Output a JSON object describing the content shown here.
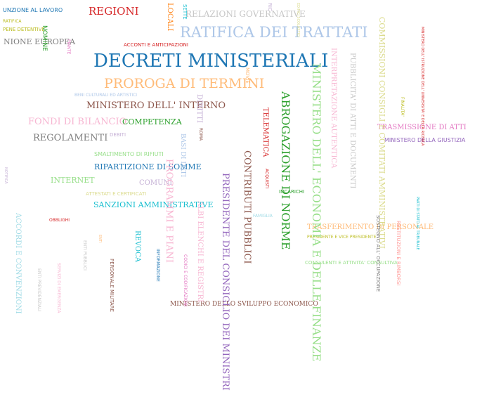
{
  "words": [
    {
      "id": "w01",
      "text": "UNZIONE AL LAVORO",
      "color": "#1f77b4"
    },
    {
      "id": "w02",
      "text": "REGIONI",
      "color": "#d62728"
    },
    {
      "id": "w03",
      "text": "LOCALI",
      "color": "#ff7f0e"
    },
    {
      "id": "w04",
      "text": "RELAZIONI GOVERNATIVE",
      "color": "#c7c7c7"
    },
    {
      "id": "w05",
      "text": "RATIFICA",
      "color": "#bcbd22"
    },
    {
      "id": "w06",
      "text": "PENE DETENTIVE",
      "color": "#bcbd22"
    },
    {
      "id": "w07",
      "text": "NOMINE",
      "color": "#2ca02c"
    },
    {
      "id": "w08",
      "text": "RATIFICA DEI TRATTATI",
      "color": "#aec7e8"
    },
    {
      "id": "w09",
      "text": "NIONE EUROPEA",
      "color": "#7f7f7f"
    },
    {
      "id": "w10",
      "text": "ACCONTI E ANTICIPAZIONI",
      "color": "#d62728"
    },
    {
      "id": "w11",
      "text": "DECRETI MINISTERIALI",
      "color": "#1f77b4"
    },
    {
      "id": "w12",
      "text": "PROROGA DI TERMINI",
      "color": "#ffbb78"
    },
    {
      "id": "w13",
      "text": "BENI CULTURALI ED ARTISTICI",
      "color": "#aec7e8"
    },
    {
      "id": "w14",
      "text": "MINISTERO DELL' INTERNO",
      "color": "#8c564b"
    },
    {
      "id": "w15",
      "text": "FONDI DI BILANCIO",
      "color": "#f7b6d2"
    },
    {
      "id": "w16",
      "text": "COMPETENZA",
      "color": "#2ca02c"
    },
    {
      "id": "w17",
      "text": "DEBITI",
      "color": "#c5b0d5"
    },
    {
      "id": "w18",
      "text": "REGOLAMENTI",
      "color": "#7f7f7f"
    },
    {
      "id": "w19",
      "text": "SMALTIMENTO DI RIFIUTI",
      "color": "#98df8a"
    },
    {
      "id": "w20",
      "text": "RIPARTIZIONE DI SOMME",
      "color": "#1f77b4"
    },
    {
      "id": "w21",
      "text": "INTERNET",
      "color": "#98df8a"
    },
    {
      "id": "w22",
      "text": "COMUNI",
      "color": "#c5b0d5"
    },
    {
      "id": "w23",
      "text": "ATTESTATI E CERTIFICATI",
      "color": "#dbdb8d"
    },
    {
      "id": "w24",
      "text": "SANZIONI AMMINISTRATIVE",
      "color": "#17becf"
    },
    {
      "id": "w25",
      "text": "OBBLIGHI",
      "color": "#d62728"
    },
    {
      "id": "w26",
      "text": "DIRITTI",
      "color": "#c5b0d5"
    },
    {
      "id": "w27",
      "text": "ROMA",
      "color": "#8c564b"
    },
    {
      "id": "w28",
      "text": "BASI DI DATI",
      "color": "#aec7e8"
    },
    {
      "id": "w29",
      "text": "PROGRAMMI E PIANI",
      "color": "#f7b6d2"
    },
    {
      "id": "w30",
      "text": "ALBI ELENCHI E REGISTRI",
      "color": "#f7b6d2"
    },
    {
      "id": "w31",
      "text": "CODICI E CODIFICAZIONI",
      "color": "#e377c2"
    },
    {
      "id": "w32",
      "text": "PRESIDENTE DEL CONSIGLIO DEI MINISTRI",
      "color": "#9467bd"
    },
    {
      "id": "w33",
      "text": "CONTRIBUTI PUBBLICI",
      "color": "#8c564b"
    },
    {
      "id": "w34",
      "text": "TELEMATICA",
      "color": "#d62728"
    },
    {
      "id": "w35",
      "text": "ACQUISTI",
      "color": "#d62728"
    },
    {
      "id": "w36",
      "text": "ABROGAZIONE DI NORME",
      "color": "#2ca02c"
    },
    {
      "id": "w37",
      "text": "INCARICHI",
      "color": "#2ca02c"
    },
    {
      "id": "w38",
      "text": "FAMIGLIA",
      "color": "#9edae5"
    },
    {
      "id": "w39",
      "text": "MINISTERO DELL' ECONOMIA E DELLE FINANZE",
      "color": "#98df8a"
    },
    {
      "id": "w40",
      "text": "INTERPRETAZIONE AUTENTICA",
      "color": "#f7b6d2"
    },
    {
      "id": "w41",
      "text": "PUBBLICITA' DI ATTI E DOCUMENTI",
      "color": "#c7c7c7"
    },
    {
      "id": "w42",
      "text": "COMMISSIONI CONSIGLI E COMITATI AMMINISTRATIVI",
      "color": "#dbdb8d"
    },
    {
      "id": "w43",
      "text": "MINISTERO DELL' ISTRUZIONE DELL' UNIVERSITA' E DELLA RICERCA",
      "color": "#d62728"
    },
    {
      "id": "w44",
      "text": "TRASMISSIONE DI ATTI",
      "color": "#e377c2"
    },
    {
      "id": "w45",
      "text": "MINISTERO DELLA GIUSTIZIA",
      "color": "#9467bd"
    },
    {
      "id": "w46",
      "text": "TRASFERIMENTO DI PERSONALE",
      "color": "#ffbb78"
    },
    {
      "id": "w47",
      "text": "PRESIDENTE E VICE PRESIDENTE",
      "color": "#bcbd22"
    },
    {
      "id": "w48",
      "text": "CONSULENTI E ATTIVITA' CONSULTIVA",
      "color": "#98df8a"
    },
    {
      "id": "w49",
      "text": "RESTITUZIONI E RIMBORSI",
      "color": "#ff9896"
    },
    {
      "id": "w50",
      "text": "SOSTEGNO ALL' OCCUPAZIONE",
      "color": "#7f7f7f"
    },
    {
      "id": "w51",
      "text": "PARTI DI STATO AL TRIBUNALE",
      "color": "#17becf"
    },
    {
      "id": "w52",
      "text": "REVOCA",
      "color": "#17becf"
    },
    {
      "id": "w53",
      "text": "INFORMAZIONE",
      "color": "#1f77b4"
    },
    {
      "id": "w54",
      "text": "ENTI PUBBLICI",
      "color": "#c7c7c7"
    },
    {
      "id": "w55",
      "text": "PERSONALE MILITARE",
      "color": "#8c564b"
    },
    {
      "id": "w56",
      "text": "SERVIZI DI EMERGENZA",
      "color": "#f7b6d2"
    },
    {
      "id": "w57",
      "text": "ACCORDI E CONVENZIONI",
      "color": "#9edae5"
    },
    {
      "id": "w58",
      "text": "ENTI PREVIDENZIALI",
      "color": "#c7c7c7"
    },
    {
      "id": "w59",
      "text": "MINISTERO DELLO SVILUPPO ECONOMICO",
      "color": "#8c564b"
    },
    {
      "id": "w60",
      "text": "NOTIFICA",
      "color": "#c5b0d5"
    },
    {
      "id": "w61",
      "text": "PIANTE",
      "color": "#e377c2"
    },
    {
      "id": "w62",
      "text": "ENTI",
      "color": "#ffbb78"
    },
    {
      "id": "w63",
      "text": "EDIFICI SCOLASTICI",
      "color": "#dbdb8d"
    },
    {
      "id": "w64",
      "text": "SETTE",
      "color": "#17becf"
    },
    {
      "id": "w65",
      "text": "RIC",
      "color": "#c5b0d5"
    },
    {
      "id": "w66",
      "text": "FINALITA'",
      "color": "#bcbd22"
    },
    {
      "id": "w67",
      "text": "MOVIE",
      "color": "#ffbb78"
    }
  ]
}
